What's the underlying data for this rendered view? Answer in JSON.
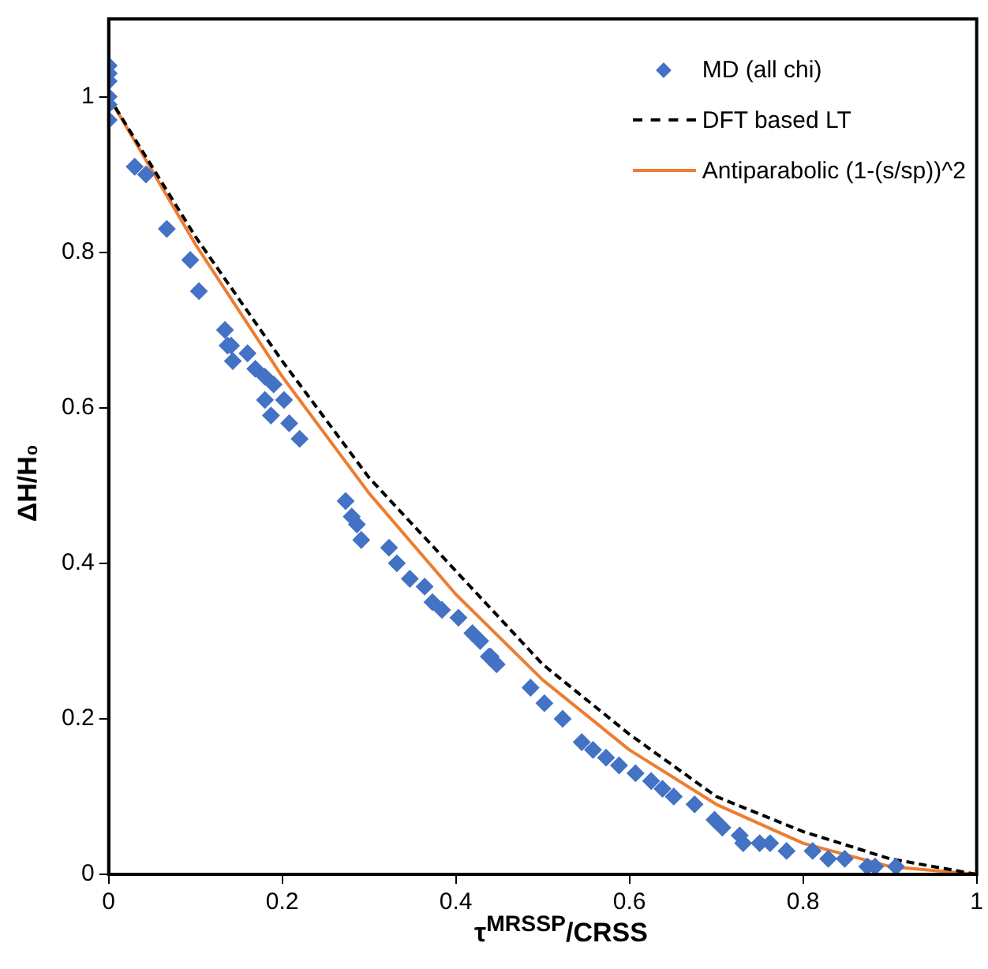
{
  "chart_data": {
    "type": "scatter",
    "xlabel": "τ$^{MRSSP}$/CRSS",
    "ylabel": "ΔH/H₀",
    "xlim": [
      0,
      1
    ],
    "ylim": [
      0,
      1.1
    ],
    "xticks": [
      0,
      0.2,
      0.4,
      0.6,
      0.8,
      1
    ],
    "yticks": [
      0,
      0.2,
      0.4,
      0.6,
      0.8,
      1
    ],
    "grid": false,
    "legend": "top right",
    "series": [
      {
        "name": "MD (all chi)",
        "marker": "diamond",
        "color": "#4472c4",
        "x": [
          0,
          0,
          0,
          0,
          0,
          0,
          0.03,
          0.043,
          0.067,
          0.094,
          0.104,
          0.134,
          0.137,
          0.143,
          0.16,
          0.169,
          0.18,
          0.19,
          0.18,
          0.187,
          0.202,
          0.208,
          0.22,
          0.141,
          0.273,
          0.28,
          0.286,
          0.291,
          0.323,
          0.332,
          0.347,
          0.364,
          0.373,
          0.384,
          0.403,
          0.419,
          0.428,
          0.438,
          0.447,
          0.44,
          0.486,
          0.502,
          0.523,
          0.545,
          0.558,
          0.573,
          0.588,
          0.607,
          0.625,
          0.638,
          0.651,
          0.675,
          0.698,
          0.707,
          0.727,
          0.731,
          0.75,
          0.762,
          0.781,
          0.811,
          0.829,
          0.848,
          0.874,
          0.883,
          0.907
        ],
        "values": [
          1.04,
          1.03,
          1.02,
          1.0,
          0.99,
          0.97,
          0.91,
          0.9,
          0.83,
          0.79,
          0.75,
          0.7,
          0.68,
          0.66,
          0.67,
          0.65,
          0.64,
          0.63,
          0.61,
          0.59,
          0.61,
          0.58,
          0.56,
          0.68,
          0.48,
          0.46,
          0.45,
          0.43,
          0.42,
          0.4,
          0.38,
          0.37,
          0.35,
          0.34,
          0.33,
          0.31,
          0.3,
          0.28,
          0.27,
          0.28,
          0.24,
          0.22,
          0.2,
          0.17,
          0.16,
          0.15,
          0.14,
          0.13,
          0.12,
          0.11,
          0.1,
          0.09,
          0.07,
          0.06,
          0.05,
          0.04,
          0.04,
          0.04,
          0.03,
          0.03,
          0.02,
          0.02,
          0.01,
          0.01,
          0.01
        ]
      },
      {
        "name": "DFT based LT",
        "type": "line",
        "marker": "none",
        "line_style": "dashed",
        "color": "#000000",
        "x": [
          0,
          0.1,
          0.2,
          0.3,
          0.4,
          0.5,
          0.6,
          0.7,
          0.8,
          0.9,
          1
        ],
        "values": [
          1,
          0.82,
          0.66,
          0.51,
          0.39,
          0.27,
          0.18,
          0.1,
          0.055,
          0.02,
          0
        ]
      },
      {
        "name": "Antiparabolic (1-(s/sp))^2",
        "type": "line",
        "marker": "none",
        "line_style": "solid",
        "color": "#ed7d31",
        "x": [
          0,
          0.1,
          0.2,
          0.3,
          0.4,
          0.5,
          0.6,
          0.7,
          0.8,
          0.9,
          1
        ],
        "values": [
          1,
          0.81,
          0.64,
          0.49,
          0.36,
          0.25,
          0.16,
          0.09,
          0.04,
          0.01,
          0
        ]
      }
    ]
  }
}
